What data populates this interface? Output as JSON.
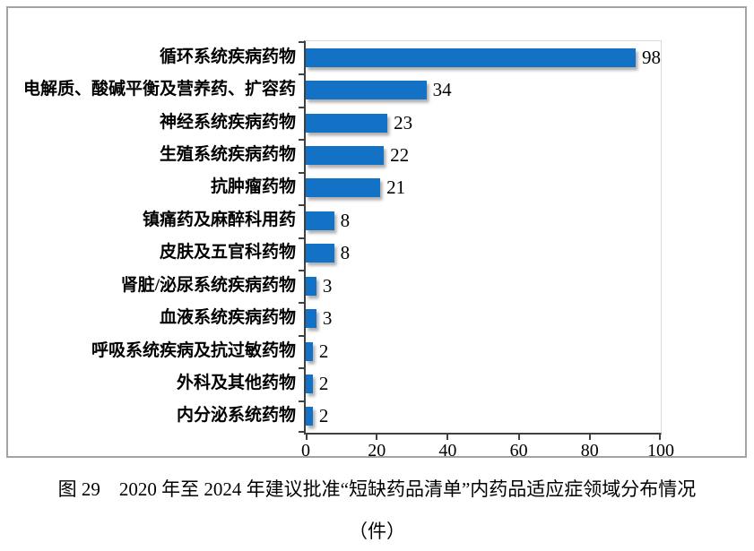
{
  "chart_data": {
    "type": "bar",
    "orientation": "horizontal",
    "categories": [
      "循环系统疾病药物",
      "电解质、酸碱平衡及营养药、扩容药",
      "神经系统疾病药物",
      "生殖系统疾病药物",
      "抗肿瘤药物",
      "镇痛药及麻醉科用药",
      "皮肤及五官科药物",
      "肾脏/泌尿系统疾病药物",
      "血液系统疾病药物",
      "呼吸系统疾病及抗过敏药物",
      "外科及其他药物",
      "内分泌系统药物"
    ],
    "values": [
      98,
      34,
      23,
      22,
      21,
      8,
      8,
      3,
      3,
      2,
      2,
      2
    ],
    "data_labels": [
      98,
      34,
      23,
      22,
      21,
      8,
      8,
      3,
      3,
      2,
      2,
      2
    ],
    "xlim": [
      0,
      100
    ],
    "x_ticks": [
      0,
      20,
      40,
      60,
      80,
      100
    ],
    "grid": false,
    "legend": false,
    "title": "图 29　2020 年至 2024 年建议批准“短缺药品清单”内药品适应症领域分布情况",
    "unit_label": "（件）"
  },
  "caption": {
    "line1": "图 29　2020 年至 2024 年建议批准“短缺药品清单”内药品适应症领域分布情况",
    "line2": "（件）"
  },
  "colors": {
    "bar": "#1372C6",
    "frame_border": "#a3a3a3",
    "plot_border": "#d9d9d9",
    "axis": "#404040",
    "text": "#000000"
  }
}
